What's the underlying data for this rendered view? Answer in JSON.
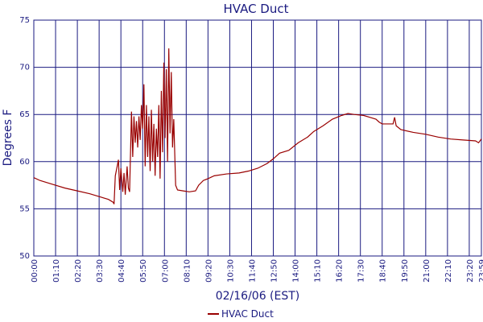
{
  "chart_data": {
    "type": "line",
    "title": "HVAC Duct",
    "ylabel": "Degrees F",
    "xlabel": "02/16/06 (EST)",
    "x": [
      0,
      20,
      60,
      100,
      140,
      180,
      210,
      240,
      255,
      258,
      262,
      268,
      272,
      276,
      280,
      286,
      290,
      294,
      300,
      304,
      308,
      314,
      318,
      322,
      326,
      330,
      334,
      338,
      342,
      346,
      350,
      354,
      358,
      362,
      366,
      370,
      374,
      378,
      382,
      386,
      390,
      394,
      398,
      402,
      406,
      410,
      414,
      418,
      422,
      426,
      430,
      434,
      438,
      442,
      446,
      450,
      456,
      462,
      480,
      500,
      520,
      530,
      545,
      560,
      580,
      620,
      660,
      690,
      720,
      750,
      770,
      790,
      820,
      850,
      880,
      900,
      930,
      960,
      990,
      1010,
      1030,
      1060,
      1080,
      1100,
      1110,
      1120,
      1155,
      1160,
      1165,
      1180,
      1220,
      1260,
      1300,
      1340,
      1380,
      1420,
      1430,
      1439
    ],
    "series": [
      {
        "name": "HVAC Duct",
        "color": "#990000",
        "values": [
          58.3,
          58.0,
          57.6,
          57.2,
          56.9,
          56.6,
          56.3,
          56.0,
          55.7,
          55.5,
          58.5,
          59.5,
          60.2,
          57.0,
          59.3,
          56.8,
          58.8,
          56.5,
          59.5,
          57.2,
          56.8,
          65.3,
          60.5,
          64.8,
          62.0,
          64.3,
          61.5,
          64.8,
          62.3,
          66.0,
          63.5,
          68.2,
          59.5,
          66.0,
          60.5,
          64.8,
          59.0,
          65.5,
          60.0,
          64.0,
          58.5,
          63.5,
          60.5,
          66.0,
          58.2,
          67.5,
          61.0,
          70.5,
          62.5,
          69.8,
          60.0,
          72.0,
          63.0,
          69.5,
          61.5,
          64.5,
          57.5,
          57.0,
          56.9,
          56.8,
          56.9,
          57.5,
          58.0,
          58.2,
          58.5,
          58.7,
          58.8,
          59.0,
          59.3,
          59.8,
          60.3,
          60.9,
          61.2,
          62.0,
          62.6,
          63.2,
          63.8,
          64.5,
          64.9,
          65.1,
          65.0,
          64.9,
          64.7,
          64.5,
          64.2,
          64.0,
          64.0,
          64.7,
          63.8,
          63.4,
          63.1,
          62.9,
          62.6,
          62.4,
          62.3,
          62.2,
          62.0,
          62.4
        ]
      }
    ],
    "xlim": [
      0,
      1439
    ],
    "xticks": [
      {
        "value": 0,
        "label": "00:00"
      },
      {
        "value": 70,
        "label": "01:10"
      },
      {
        "value": 140,
        "label": "02:20"
      },
      {
        "value": 210,
        "label": "03:30"
      },
      {
        "value": 280,
        "label": "04:40"
      },
      {
        "value": 350,
        "label": "05:50"
      },
      {
        "value": 420,
        "label": "07:00"
      },
      {
        "value": 490,
        "label": "08:10"
      },
      {
        "value": 560,
        "label": "09:20"
      },
      {
        "value": 630,
        "label": "10:30"
      },
      {
        "value": 700,
        "label": "11:40"
      },
      {
        "value": 770,
        "label": "12:50"
      },
      {
        "value": 840,
        "label": "14:00"
      },
      {
        "value": 910,
        "label": "15:10"
      },
      {
        "value": 980,
        "label": "16:20"
      },
      {
        "value": 1050,
        "label": "17:30"
      },
      {
        "value": 1120,
        "label": "18:40"
      },
      {
        "value": 1190,
        "label": "19:50"
      },
      {
        "value": 1260,
        "label": "21:00"
      },
      {
        "value": 1330,
        "label": "22:10"
      },
      {
        "value": 1400,
        "label": "23:20"
      },
      {
        "value": 1439,
        "label": "23:59"
      }
    ],
    "ylim": [
      50,
      75
    ],
    "yticks": [
      50,
      55,
      60,
      65,
      70,
      75
    ],
    "grid": true
  }
}
